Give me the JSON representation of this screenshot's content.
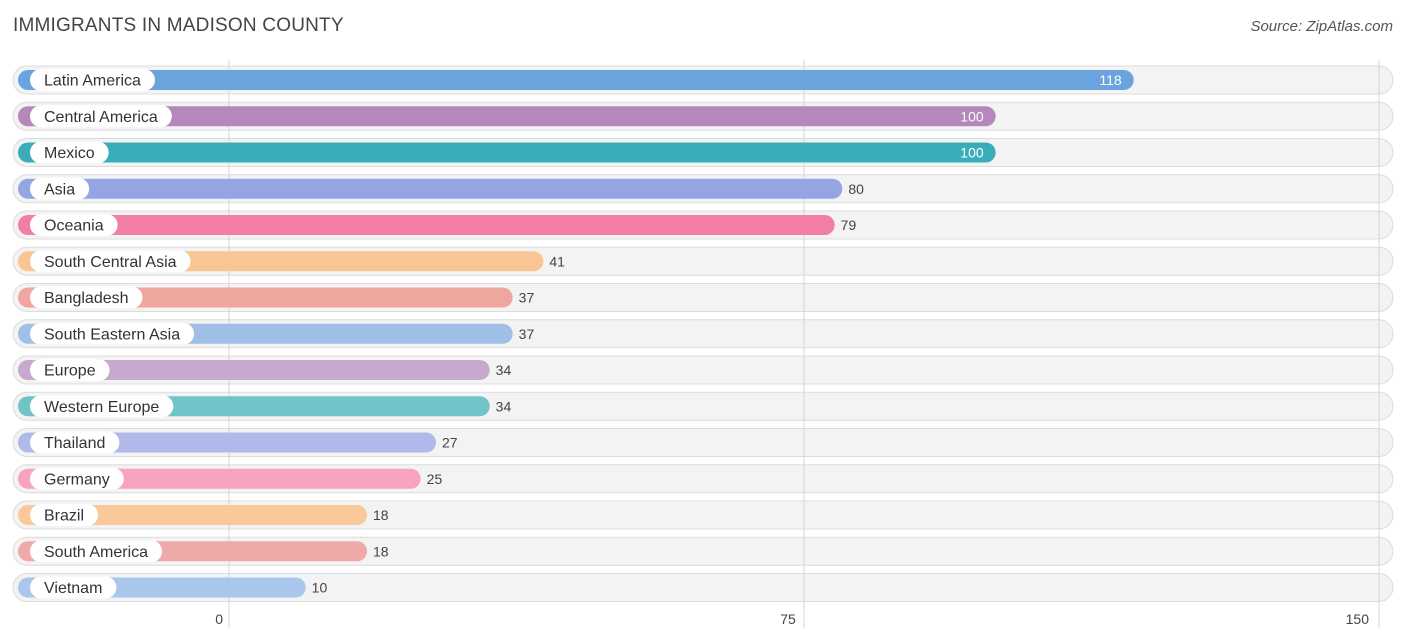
{
  "title": "IMMIGRANTS IN MADISON COUNTY",
  "source": "Source: ZipAtlas.com",
  "chart_data": {
    "type": "bar",
    "orientation": "horizontal",
    "title": "IMMIGRANTS IN MADISON COUNTY",
    "xlim": [
      0,
      150
    ],
    "xticks": [
      0,
      75,
      150
    ],
    "grid": true,
    "categories": [
      "Latin America",
      "Central America",
      "Mexico",
      "Asia",
      "Oceania",
      "South Central Asia",
      "Bangladesh",
      "South Eastern Asia",
      "Europe",
      "Western Europe",
      "Thailand",
      "Germany",
      "Brazil",
      "South America",
      "Vietnam"
    ],
    "values": [
      118,
      100,
      100,
      80,
      79,
      41,
      37,
      37,
      34,
      34,
      27,
      25,
      18,
      18,
      10
    ],
    "colors": [
      "#6aa3dd",
      "#b687bb",
      "#3aaeb8",
      "#95a5e3",
      "#f27fa3",
      "#f9c593",
      "#eea69f",
      "#9fbfe6",
      "#c6a9cc",
      "#70c3c7",
      "#b1b9ea",
      "#f7a3bf",
      "#f9c99a",
      "#eeaaa8",
      "#a9c6ec"
    ]
  }
}
